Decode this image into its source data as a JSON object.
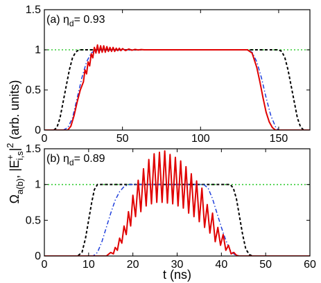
{
  "ylabel_main": "Ω",
  "ylabel_sub": "a(b)",
  "ylabel_rest": ", |E",
  "ylabel_sup": "+",
  "ylabel_sub2": "i,s",
  "ylabel_tail": "|",
  "ylabel_sq": "2",
  "ylabel_units": " (arb. units)",
  "colors": {
    "black": "#000000",
    "blue": "#1f3fdc",
    "red": "#e00000",
    "green": "#33cc33"
  },
  "chart_data": [
    {
      "type": "line",
      "panel_label_prefix": "(a) η",
      "panel_label_sub": "d",
      "panel_label_value": "= 0.93",
      "xlim": [
        0,
        170
      ],
      "ylim": [
        0,
        1.5
      ],
      "xticks": [
        0,
        50,
        100,
        150
      ],
      "xtick_labels": [
        "0",
        "50",
        "100",
        "150"
      ],
      "yticks": [
        0,
        0.5,
        1,
        1.5
      ],
      "ytick_labels": [
        "0",
        "0.5",
        "1",
        "1.5"
      ],
      "xlabel": "",
      "series": [
        {
          "color": "green",
          "dash": "2,3",
          "width": 1.6,
          "x": [
            0,
            170
          ],
          "y": [
            1,
            1
          ]
        },
        {
          "color": "black",
          "dash": "4,3",
          "width": 2,
          "x": [
            0,
            6,
            8,
            10,
            12,
            14,
            16,
            18,
            20,
            22,
            24,
            26,
            150,
            152,
            154,
            156,
            158,
            160,
            162,
            164,
            166,
            170
          ],
          "y": [
            0,
            0,
            0.03,
            0.15,
            0.35,
            0.55,
            0.75,
            0.9,
            0.97,
            1,
            1,
            1,
            1,
            0.98,
            0.9,
            0.75,
            0.55,
            0.35,
            0.15,
            0.04,
            0,
            0
          ]
        },
        {
          "color": "blue",
          "dash": "6,3,1.5,3",
          "width": 1.5,
          "x": [
            0,
            12,
            15,
            18,
            21,
            24,
            27,
            30,
            33,
            36,
            130,
            133,
            136,
            139,
            142,
            145,
            148,
            150,
            170
          ],
          "y": [
            0,
            0,
            0.03,
            0.15,
            0.4,
            0.65,
            0.85,
            0.96,
            1,
            1,
            1,
            0.97,
            0.85,
            0.65,
            0.4,
            0.18,
            0.04,
            0,
            0
          ]
        },
        {
          "color": "red",
          "dash": "",
          "width": 2,
          "x": [
            0,
            15,
            17,
            19,
            21,
            23,
            25,
            26,
            27,
            28,
            29,
            30,
            31,
            32,
            33,
            34,
            35,
            36,
            37,
            38,
            39,
            40,
            41,
            42,
            43,
            44,
            45,
            46,
            47,
            48,
            49,
            50,
            52,
            54,
            56,
            58,
            60,
            62,
            64,
            66,
            70,
            100,
            130,
            133,
            136,
            138,
            140,
            142,
            144,
            146,
            148,
            150,
            170
          ],
          "y": [
            0,
            0,
            0.05,
            0.18,
            0.35,
            0.5,
            0.6,
            0.75,
            0.7,
            0.85,
            0.8,
            0.95,
            0.9,
            1.03,
            0.96,
            1.06,
            0.96,
            1.05,
            0.97,
            1.05,
            0.97,
            1.04,
            0.98,
            1.03,
            0.98,
            1.03,
            0.98,
            1.02,
            0.99,
            1.02,
            0.99,
            1.015,
            0.99,
            1.01,
            0.995,
            1.005,
            0.998,
            1.003,
            1,
            1,
            1,
            1,
            1,
            0.96,
            0.78,
            0.6,
            0.4,
            0.22,
            0.1,
            0.03,
            0,
            0,
            0
          ]
        }
      ]
    },
    {
      "type": "line",
      "panel_label_prefix": "(b) η",
      "panel_label_sub": "d",
      "panel_label_value": "= 0.89",
      "xlim": [
        0,
        60
      ],
      "ylim": [
        0,
        1.5
      ],
      "xticks": [
        0,
        10,
        20,
        30,
        40,
        50,
        60
      ],
      "xtick_labels": [
        "0",
        "10",
        "20",
        "30",
        "40",
        "50",
        "60"
      ],
      "yticks": [
        0,
        0.5,
        1,
        1.5
      ],
      "ytick_labels": [
        "0",
        "0.5",
        "1",
        "1.5"
      ],
      "xlabel": "t (ns)",
      "series": [
        {
          "color": "green",
          "dash": "2,3",
          "width": 1.6,
          "x": [
            0,
            60
          ],
          "y": [
            1,
            1
          ]
        },
        {
          "color": "black",
          "dash": "4,3",
          "width": 2,
          "x": [
            0,
            7.5,
            8.5,
            9.3,
            10,
            10.7,
            11.3,
            12,
            42,
            42.7,
            43.4,
            44.1,
            44.8,
            45.5,
            46.3,
            47,
            60
          ],
          "y": [
            0,
            0,
            0.05,
            0.25,
            0.5,
            0.75,
            0.93,
            1,
            1,
            0.95,
            0.8,
            0.55,
            0.3,
            0.1,
            0.02,
            0,
            0
          ]
        },
        {
          "color": "blue",
          "dash": "6,3,1.5,3",
          "width": 1.5,
          "x": [
            0,
            11,
            12,
            13,
            14,
            15,
            16,
            17,
            18,
            19,
            36,
            37,
            38,
            39,
            40,
            41,
            42,
            43,
            44,
            60
          ],
          "y": [
            0,
            0,
            0.05,
            0.2,
            0.4,
            0.6,
            0.78,
            0.9,
            0.97,
            1,
            1,
            0.95,
            0.8,
            0.6,
            0.4,
            0.22,
            0.08,
            0.02,
            0,
            0
          ]
        },
        {
          "color": "red",
          "dash": "",
          "width": 2,
          "x": [
            0,
            14,
            15,
            15.6,
            16,
            16.5,
            17,
            17.5,
            18,
            18.5,
            19,
            19.5,
            20,
            20.6,
            21.2,
            21.8,
            22.4,
            23,
            23.6,
            24.2,
            24.8,
            25.4,
            26,
            26.6,
            27.2,
            27.8,
            28.4,
            29,
            29.6,
            30.2,
            30.8,
            31.4,
            32,
            32.6,
            33.2,
            33.8,
            34.4,
            35,
            35.6,
            36.2,
            36.8,
            37.4,
            38,
            38.6,
            39.2,
            39.8,
            40.4,
            41,
            41.6,
            42.2,
            42.8,
            43.4,
            44,
            60
          ],
          "y": [
            0,
            0,
            0.05,
            0.03,
            0.12,
            0.08,
            0.25,
            0.18,
            0.42,
            0.3,
            0.62,
            0.42,
            0.85,
            0.55,
            1.06,
            0.62,
            1.22,
            0.7,
            1.35,
            0.73,
            1.43,
            0.75,
            1.45,
            0.75,
            1.47,
            0.74,
            1.42,
            0.73,
            1.38,
            0.7,
            1.33,
            0.67,
            1.25,
            0.6,
            1.15,
            0.55,
            1.05,
            0.48,
            0.95,
            0.4,
            0.72,
            0.32,
            0.6,
            0.2,
            0.4,
            0.15,
            0.3,
            0.08,
            0.15,
            0.03,
            0.05,
            0.01,
            0,
            0
          ]
        }
      ]
    }
  ]
}
